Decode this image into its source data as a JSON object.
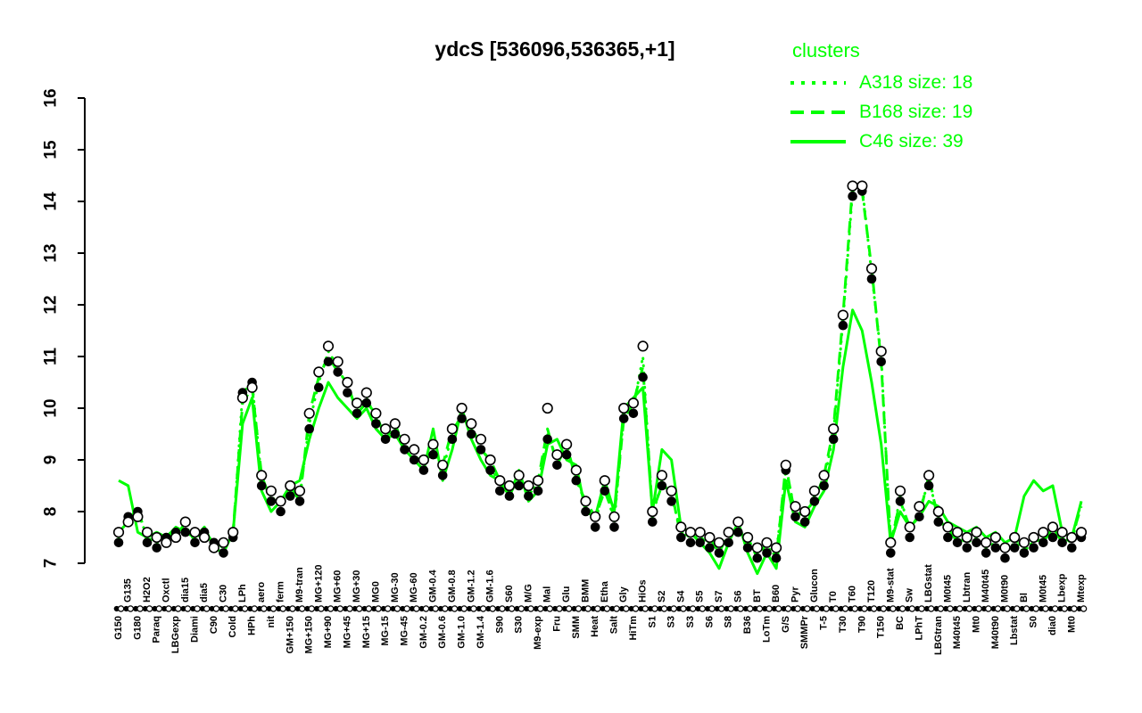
{
  "title": "ydcS [536096,536365,+1]",
  "accent_color": "#00ff00",
  "legend": {
    "title": "clusters",
    "entries": [
      {
        "label": "A318 size: 18",
        "line_style": "dotted"
      },
      {
        "label": "B168 size: 19",
        "line_style": "dashed"
      },
      {
        "label": "C46 size: 39",
        "line_style": "solid"
      }
    ]
  },
  "chart_data": {
    "type": "line",
    "title": "ydcS [536096,536365,+1]",
    "xlabel": "",
    "ylabel": "",
    "ylim": [
      7,
      16
    ],
    "yticks": [
      7,
      8,
      9,
      10,
      11,
      12,
      13,
      14,
      15,
      16
    ],
    "grid": false,
    "legend_position": "top-right",
    "categories": [
      "G150",
      "G135",
      "G180",
      "H2O2",
      "Paraq",
      "Oxctl",
      "LBGexp",
      "dia15",
      "Diami",
      "dia5",
      "C90",
      "C30",
      "Cold",
      "LPh",
      "HPh",
      "aero",
      "nit",
      "ferm",
      "GM+150",
      "M9-tran",
      "MG+150",
      "MG+120",
      "MG+90",
      "MG+60",
      "MG+45",
      "MG+30",
      "MG+15",
      "MG0",
      "MG-15",
      "MG-30",
      "MG-45",
      "MG-60",
      "GM-0.2",
      "GM-0.4",
      "GM-0.6",
      "GM-0.8",
      "GM-1.0",
      "GM-1.2",
      "GM-1.4",
      "GM-1.6",
      "S90",
      "S60",
      "S30",
      "M/G",
      "M9-exp",
      "Mal",
      "Fru",
      "Glu",
      "SMM",
      "BMM",
      "Heat",
      "Etha",
      "Salt",
      "Gly",
      "HiTm",
      "HiOs",
      "S1",
      "S2",
      "S3",
      "S4",
      "S3",
      "S5",
      "S6",
      "S7",
      "S8",
      "S6",
      "B36",
      "BT",
      "LoTm",
      "B60",
      "G/S",
      "Pyr",
      "SMMPr",
      "Glucon",
      "T-5",
      "T0",
      "T30",
      "T60",
      "T90",
      "T120",
      "T150",
      "M9-stat",
      "BC",
      "Sw",
      "LPhT",
      "LBGstat",
      "LBGtran",
      "M0t45",
      "M40t45",
      "Lbtran",
      "Mt0",
      "M40t45",
      "M40t90",
      "M0t90",
      "Lbstat",
      "Bl",
      "S0",
      "M0t45",
      "dia0",
      "Lbexp",
      "Mt0",
      "Mtexp"
    ],
    "series": [
      {
        "name": "A318 size: 18",
        "style": "dotted",
        "color": "#00ff00",
        "values": [
          7.5,
          7.9,
          8.0,
          7.5,
          7.4,
          7.5,
          7.6,
          7.7,
          7.5,
          7.6,
          7.4,
          7.3,
          7.5,
          10.3,
          10.5,
          8.6,
          8.3,
          8.1,
          8.4,
          8.3,
          9.7,
          10.5,
          11.1,
          10.8,
          10.4,
          10.0,
          10.2,
          9.8,
          9.5,
          9.6,
          9.3,
          9.1,
          8.9,
          9.2,
          8.8,
          9.5,
          9.9,
          9.6,
          9.3,
          8.9,
          8.5,
          8.4,
          8.6,
          8.4,
          8.5,
          9.5,
          9.0,
          9.2,
          8.7,
          8.1,
          7.8,
          8.5,
          7.8,
          9.9,
          10.0,
          11.0,
          7.9,
          8.6,
          8.3,
          7.6,
          7.5,
          7.5,
          7.4,
          7.3,
          7.5,
          7.7,
          7.4,
          7.2,
          7.3,
          7.2,
          8.8,
          8.0,
          7.9,
          8.3,
          8.6,
          9.5,
          11.7,
          14.2,
          14.3,
          12.6,
          11.0,
          7.3,
          8.3,
          7.6,
          8.0,
          8.6,
          7.9,
          7.6,
          7.5,
          7.4,
          7.5,
          7.3,
          7.4,
          7.2,
          7.4,
          7.3,
          7.4,
          7.5,
          7.6,
          7.5,
          7.4,
          8.2
        ]
      },
      {
        "name": "B168 size: 19",
        "style": "dashed",
        "color": "#00ff00",
        "values": [
          7.6,
          7.8,
          8.1,
          7.4,
          7.5,
          7.6,
          7.5,
          7.8,
          7.4,
          7.7,
          7.3,
          7.4,
          7.6,
          10.1,
          10.4,
          8.7,
          8.2,
          8.2,
          8.5,
          8.2,
          9.9,
          10.6,
          11.0,
          10.7,
          10.5,
          9.9,
          10.1,
          9.9,
          9.4,
          9.7,
          9.2,
          9.0,
          9.0,
          9.1,
          8.9,
          9.6,
          9.8,
          9.7,
          9.2,
          9.0,
          8.6,
          8.3,
          8.7,
          8.3,
          8.6,
          9.6,
          8.9,
          9.3,
          8.6,
          8.2,
          7.9,
          8.4,
          7.9,
          9.8,
          10.1,
          10.8,
          8.0,
          8.5,
          8.4,
          7.5,
          7.6,
          7.4,
          7.5,
          7.2,
          7.6,
          7.6,
          7.5,
          7.1,
          7.4,
          7.1,
          8.9,
          7.9,
          8.0,
          8.2,
          8.7,
          9.6,
          11.8,
          14.3,
          14.2,
          12.7,
          10.9,
          7.4,
          8.2,
          7.7,
          7.9,
          8.7,
          7.8,
          7.7,
          7.4,
          7.5,
          7.4,
          7.4,
          7.3,
          7.3,
          7.5,
          7.2,
          7.5,
          7.4,
          7.7,
          7.4,
          7.5,
          8.1
        ]
      },
      {
        "name": "C46 size: 39",
        "style": "solid",
        "color": "#00ff00",
        "values": [
          8.6,
          8.5,
          7.6,
          7.5,
          7.6,
          7.5,
          7.7,
          7.6,
          7.5,
          7.7,
          7.3,
          7.2,
          7.6,
          9.7,
          10.2,
          8.4,
          8.0,
          8.2,
          8.5,
          8.6,
          9.4,
          10.0,
          10.5,
          10.2,
          10.0,
          9.8,
          10.0,
          9.6,
          9.4,
          9.5,
          9.2,
          9.0,
          8.8,
          9.6,
          8.6,
          9.2,
          10.0,
          9.4,
          9.0,
          8.7,
          8.6,
          8.3,
          8.8,
          8.2,
          8.4,
          9.3,
          9.4,
          9.0,
          8.9,
          8.0,
          7.9,
          8.6,
          8.0,
          10.0,
          10.2,
          10.4,
          8.0,
          9.2,
          9.0,
          7.7,
          7.6,
          7.4,
          7.2,
          6.9,
          7.4,
          7.8,
          7.2,
          6.8,
          7.2,
          6.9,
          8.6,
          7.8,
          7.7,
          8.1,
          8.4,
          9.2,
          10.8,
          11.9,
          11.5,
          10.5,
          9.3,
          7.4,
          8.0,
          7.7,
          7.9,
          8.2,
          8.1,
          7.8,
          7.7,
          7.6,
          7.7,
          7.5,
          7.6,
          7.4,
          7.5,
          8.3,
          8.6,
          8.4,
          8.5,
          7.6,
          7.5,
          8.2
        ]
      }
    ],
    "point_series": [
      {
        "name": "filled-circles",
        "marker": "filled",
        "color": "#000000",
        "values": [
          7.4,
          7.9,
          8.0,
          7.4,
          7.3,
          7.5,
          7.6,
          7.6,
          7.4,
          7.6,
          7.4,
          7.2,
          7.5,
          10.3,
          10.5,
          8.5,
          8.2,
          8.0,
          8.3,
          8.2,
          9.6,
          10.4,
          10.9,
          10.7,
          10.3,
          9.9,
          10.1,
          9.7,
          9.4,
          9.5,
          9.2,
          9.0,
          8.8,
          9.1,
          8.7,
          9.4,
          9.8,
          9.5,
          9.2,
          8.8,
          8.4,
          8.3,
          8.5,
          8.3,
          8.4,
          9.4,
          8.9,
          9.1,
          8.6,
          8.0,
          7.7,
          8.4,
          7.7,
          9.8,
          9.9,
          10.6,
          7.8,
          8.5,
          8.2,
          7.5,
          7.4,
          7.4,
          7.3,
          7.2,
          7.4,
          7.6,
          7.3,
          7.1,
          7.2,
          7.1,
          8.8,
          7.9,
          7.8,
          8.2,
          8.5,
          9.4,
          11.6,
          14.1,
          14.2,
          12.5,
          10.9,
          7.2,
          8.2,
          7.5,
          7.9,
          8.5,
          7.8,
          7.5,
          7.4,
          7.3,
          7.4,
          7.2,
          7.3,
          7.1,
          7.3,
          7.2,
          7.3,
          7.4,
          7.5,
          7.4,
          7.3,
          7.5
        ]
      },
      {
        "name": "open-circles",
        "marker": "open",
        "color": "#ffffff",
        "values": [
          7.6,
          7.8,
          7.9,
          7.6,
          7.5,
          7.4,
          7.5,
          7.8,
          7.6,
          7.5,
          7.3,
          7.4,
          7.6,
          10.2,
          10.4,
          8.7,
          8.4,
          8.2,
          8.5,
          8.4,
          9.9,
          10.7,
          11.2,
          10.9,
          10.5,
          10.1,
          10.3,
          9.9,
          9.6,
          9.7,
          9.4,
          9.2,
          9.0,
          9.3,
          8.9,
          9.6,
          10.0,
          9.7,
          9.4,
          9.0,
          8.6,
          8.5,
          8.7,
          8.5,
          8.6,
          10.0,
          9.1,
          9.3,
          8.8,
          8.2,
          7.9,
          8.6,
          7.9,
          10.0,
          10.1,
          11.2,
          8.0,
          8.7,
          8.4,
          7.7,
          7.6,
          7.6,
          7.5,
          7.4,
          7.6,
          7.8,
          7.5,
          7.3,
          7.4,
          7.3,
          8.9,
          8.1,
          8.0,
          8.4,
          8.7,
          9.6,
          11.8,
          14.3,
          14.3,
          12.7,
          11.1,
          7.4,
          8.4,
          7.7,
          8.1,
          8.7,
          8.0,
          7.7,
          7.6,
          7.5,
          7.6,
          7.4,
          7.5,
          7.3,
          7.5,
          7.4,
          7.5,
          7.6,
          7.7,
          7.6,
          7.5,
          7.6
        ]
      }
    ]
  }
}
